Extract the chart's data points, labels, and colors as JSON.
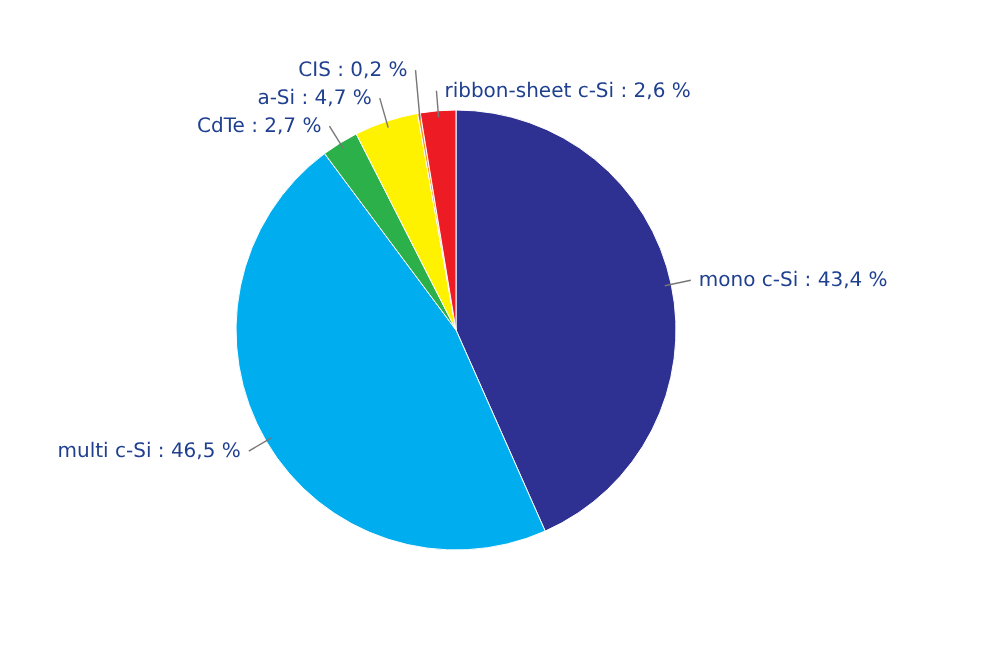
{
  "chart_data": {
    "type": "pie",
    "categories": [
      "mono c-Si",
      "multi c-Si",
      "CdTe",
      "a-Si",
      "CIS",
      "ribbon-sheet c-Si"
    ],
    "values": [
      43.4,
      46.5,
      2.7,
      4.7,
      0.2,
      2.6
    ],
    "value_labels": [
      "43,4 %",
      "46,5 %",
      "2,7 %",
      "4,7 %",
      "0,2 %",
      "2,6 %"
    ],
    "colors": [
      "#2e3192",
      "#00aeef",
      "#2bb04a",
      "#fff200",
      "#f7941d",
      "#ed1c24"
    ]
  }
}
